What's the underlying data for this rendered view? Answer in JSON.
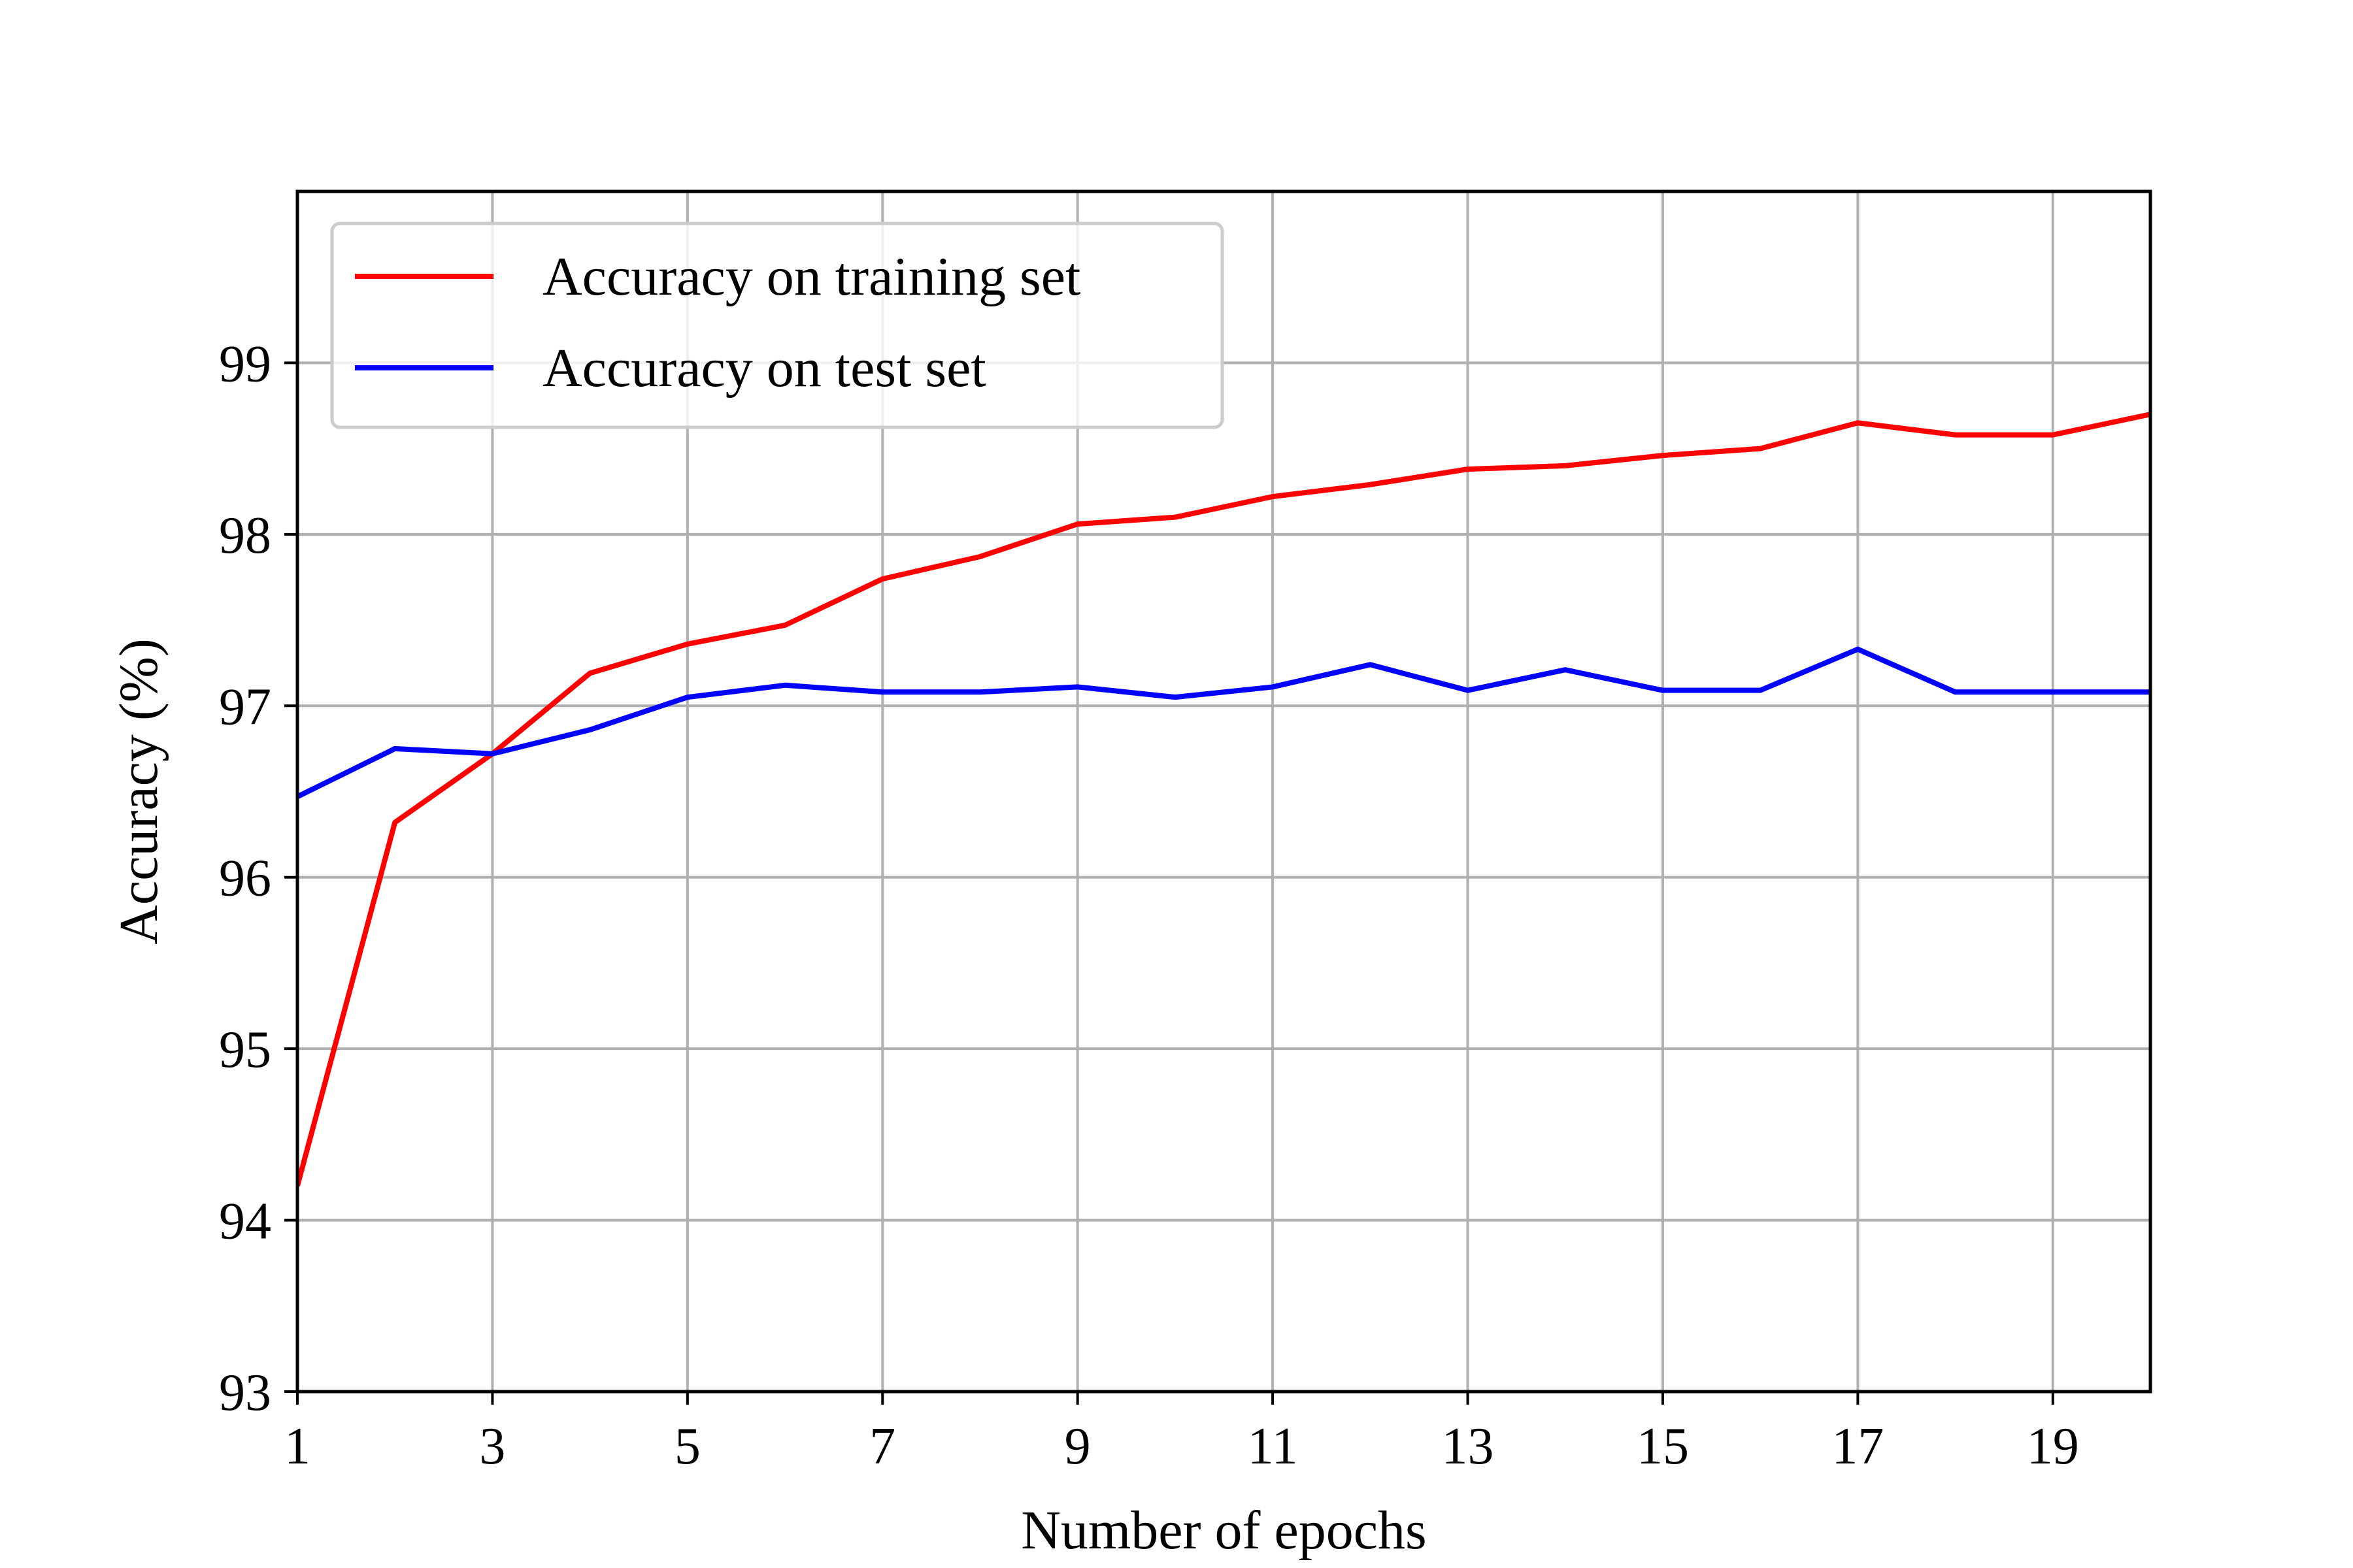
{
  "chart_data": {
    "type": "line",
    "title": "",
    "xlabel": "Number of epochs",
    "ylabel": "Accuracy (%)",
    "xlim": [
      1,
      20
    ],
    "ylim": [
      93,
      100
    ],
    "x_ticks": [
      1,
      3,
      5,
      7,
      9,
      11,
      13,
      15,
      17,
      19
    ],
    "y_ticks": [
      93,
      94,
      95,
      96,
      97,
      98,
      99
    ],
    "grid": true,
    "legend_position": "top-left",
    "x": [
      1,
      2,
      3,
      4,
      5,
      6,
      7,
      8,
      9,
      10,
      11,
      12,
      13,
      14,
      15,
      16,
      17,
      18,
      19,
      20
    ],
    "series": [
      {
        "name": "Accuracy on training set",
        "color": "#ff0000",
        "values": [
          94.2,
          96.32,
          96.72,
          97.19,
          97.36,
          97.47,
          97.74,
          97.87,
          98.06,
          98.1,
          98.22,
          98.29,
          98.38,
          98.4,
          98.46,
          98.5,
          98.65,
          98.58,
          98.58,
          98.7
        ]
      },
      {
        "name": "Accuracy on test set",
        "color": "#0000ff",
        "values": [
          96.47,
          96.75,
          96.72,
          96.86,
          97.05,
          97.12,
          97.08,
          97.08,
          97.11,
          97.05,
          97.11,
          97.24,
          97.09,
          97.21,
          97.09,
          97.09,
          97.33,
          97.08,
          97.08,
          97.08
        ]
      }
    ]
  }
}
